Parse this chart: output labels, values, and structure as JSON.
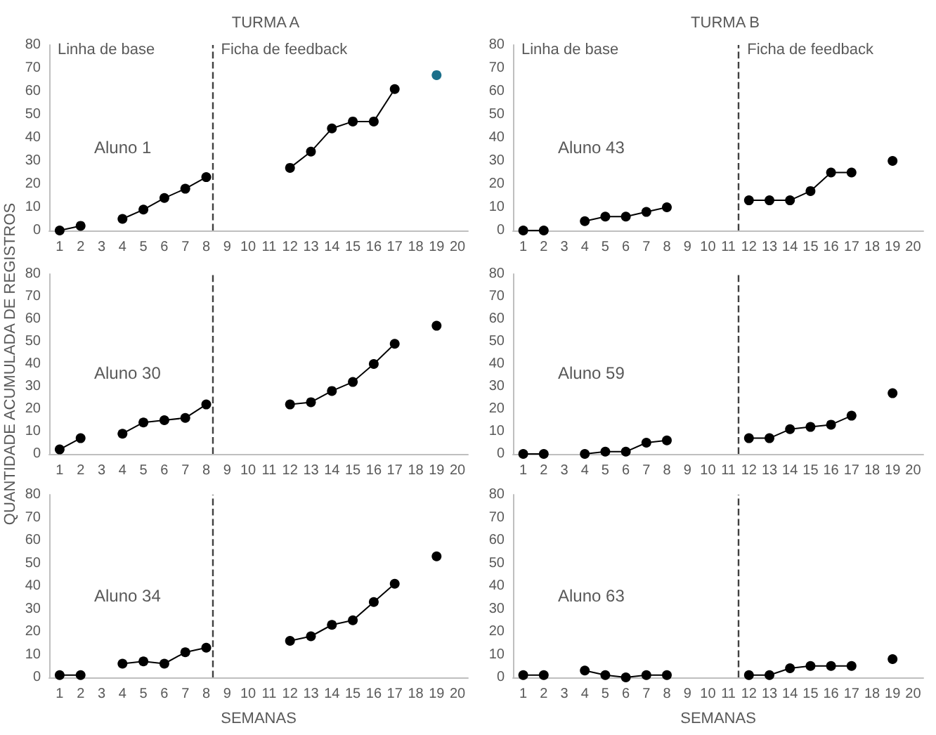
{
  "chart_data": [
    {
      "type": "line",
      "title": "TURMA A",
      "x": [
        1,
        2,
        3,
        4,
        5,
        6,
        7,
        8,
        9,
        10,
        11,
        12,
        13,
        14,
        15,
        16,
        17,
        18,
        19
      ],
      "xlim": [
        0.5,
        20.5
      ],
      "xticks": [
        1,
        2,
        3,
        4,
        5,
        6,
        7,
        8,
        9,
        10,
        11,
        12,
        13,
        14,
        15,
        16,
        17,
        18,
        19,
        20
      ],
      "ylim": [
        0,
        80
      ],
      "yticks": [
        0,
        10,
        20,
        30,
        40,
        50,
        60,
        70,
        80
      ],
      "marker": "circle",
      "line_style": "solid",
      "series": [
        {
          "color": "#000000",
          "colors": [
            "#000000",
            "#000000",
            null,
            "#000000",
            "#000000",
            "#000000",
            "#000000",
            "#000000",
            null,
            null,
            null,
            "#000000",
            "#000000",
            "#000000",
            "#000000",
            "#000000",
            "#000000",
            null,
            "#1b6f8a"
          ],
          "values": [
            0,
            2,
            null,
            5,
            9,
            14,
            18,
            23,
            null,
            null,
            null,
            27,
            34,
            44,
            47,
            47,
            61,
            null,
            67
          ]
        }
      ],
      "ref_lines": [
        {
          "axis": "x",
          "value": 8.3,
          "line_style": "dashed"
        }
      ],
      "annotations": [
        "Linha de base",
        "Ficha de feedback",
        "Aluno 1"
      ]
    },
    {
      "type": "line",
      "title": "TURMA B",
      "x": [
        1,
        2,
        3,
        4,
        5,
        6,
        7,
        8,
        9,
        10,
        11,
        12,
        13,
        14,
        15,
        16,
        17,
        18,
        19
      ],
      "xlim": [
        0.5,
        20.5
      ],
      "xticks": [
        1,
        2,
        3,
        4,
        5,
        6,
        7,
        8,
        9,
        10,
        11,
        12,
        13,
        14,
        15,
        16,
        17,
        18,
        19,
        20
      ],
      "ylim": [
        0,
        80
      ],
      "yticks": [
        0,
        10,
        20,
        30,
        40,
        50,
        60,
        70,
        80
      ],
      "marker": "circle",
      "line_style": "solid",
      "series": [
        {
          "color": "#000000",
          "values": [
            0,
            0,
            null,
            4,
            6,
            6,
            8,
            10,
            null,
            null,
            null,
            13,
            13,
            13,
            17,
            25,
            25,
            null,
            30
          ]
        }
      ],
      "ref_lines": [
        {
          "axis": "x",
          "value": 11.5,
          "line_style": "dashed"
        }
      ],
      "annotations": [
        "Linha de base",
        "Ficha de feedback",
        "Aluno 43"
      ]
    },
    {
      "type": "line",
      "ylabel": "QUANTIDADE ACUMULADA DE REGISTROS",
      "x": [
        1,
        2,
        3,
        4,
        5,
        6,
        7,
        8,
        9,
        10,
        11,
        12,
        13,
        14,
        15,
        16,
        17,
        18,
        19
      ],
      "xlim": [
        0.5,
        20.5
      ],
      "xticks": [
        1,
        2,
        3,
        4,
        5,
        6,
        7,
        8,
        9,
        10,
        11,
        12,
        13,
        14,
        15,
        16,
        17,
        18,
        19,
        20
      ],
      "ylim": [
        0,
        80
      ],
      "yticks": [
        0,
        10,
        20,
        30,
        40,
        50,
        60,
        70,
        80
      ],
      "marker": "circle",
      "line_style": "solid",
      "series": [
        {
          "color": "#000000",
          "values": [
            2,
            7,
            null,
            9,
            14,
            15,
            16,
            22,
            null,
            null,
            null,
            22,
            23,
            28,
            32,
            40,
            49,
            null,
            57
          ]
        }
      ],
      "ref_lines": [
        {
          "axis": "x",
          "value": 8.3,
          "line_style": "dashed"
        }
      ],
      "annotations": [
        "Aluno 30"
      ]
    },
    {
      "type": "line",
      "x": [
        1,
        2,
        3,
        4,
        5,
        6,
        7,
        8,
        9,
        10,
        11,
        12,
        13,
        14,
        15,
        16,
        17,
        18,
        19
      ],
      "xlim": [
        0.5,
        20.5
      ],
      "xticks": [
        1,
        2,
        3,
        4,
        5,
        6,
        7,
        8,
        9,
        10,
        11,
        12,
        13,
        14,
        15,
        16,
        17,
        18,
        19,
        20
      ],
      "ylim": [
        0,
        80
      ],
      "yticks": [
        0,
        10,
        20,
        30,
        40,
        50,
        60,
        70,
        80
      ],
      "marker": "circle",
      "line_style": "solid",
      "series": [
        {
          "color": "#000000",
          "values": [
            0,
            0,
            null,
            0,
            1,
            1,
            5,
            6,
            null,
            null,
            null,
            7,
            7,
            11,
            12,
            13,
            17,
            null,
            27
          ]
        }
      ],
      "ref_lines": [
        {
          "axis": "x",
          "value": 11.5,
          "line_style": "dashed"
        }
      ],
      "annotations": [
        "Aluno 59"
      ]
    },
    {
      "type": "line",
      "xlabel": "SEMANAS",
      "x": [
        1,
        2,
        3,
        4,
        5,
        6,
        7,
        8,
        9,
        10,
        11,
        12,
        13,
        14,
        15,
        16,
        17,
        18,
        19
      ],
      "xlim": [
        0.5,
        20.5
      ],
      "xticks": [
        1,
        2,
        3,
        4,
        5,
        6,
        7,
        8,
        9,
        10,
        11,
        12,
        13,
        14,
        15,
        16,
        17,
        18,
        19,
        20
      ],
      "ylim": [
        0,
        80
      ],
      "yticks": [
        0,
        10,
        20,
        30,
        40,
        50,
        60,
        70,
        80
      ],
      "marker": "circle",
      "line_style": "solid",
      "series": [
        {
          "color": "#000000",
          "values": [
            1,
            1,
            null,
            6,
            7,
            6,
            11,
            13,
            null,
            null,
            null,
            16,
            18,
            23,
            25,
            33,
            41,
            null,
            53
          ]
        }
      ],
      "ref_lines": [
        {
          "axis": "x",
          "value": 8.3,
          "line_style": "dashed"
        }
      ],
      "annotations": [
        "Aluno 34"
      ]
    },
    {
      "type": "line",
      "xlabel": "SEMANAS",
      "x": [
        1,
        2,
        3,
        4,
        5,
        6,
        7,
        8,
        9,
        10,
        11,
        12,
        13,
        14,
        15,
        16,
        17,
        18,
        19
      ],
      "xlim": [
        0.5,
        20.5
      ],
      "xticks": [
        1,
        2,
        3,
        4,
        5,
        6,
        7,
        8,
        9,
        10,
        11,
        12,
        13,
        14,
        15,
        16,
        17,
        18,
        19,
        20
      ],
      "ylim": [
        0,
        80
      ],
      "yticks": [
        0,
        10,
        20,
        30,
        40,
        50,
        60,
        70,
        80
      ],
      "marker": "circle",
      "line_style": "solid",
      "series": [
        {
          "color": "#000000",
          "values": [
            1,
            1,
            null,
            3,
            1,
            0,
            1,
            1,
            null,
            null,
            null,
            1,
            1,
            4,
            5,
            5,
            5,
            null,
            8
          ]
        }
      ],
      "ref_lines": [
        {
          "axis": "x",
          "value": 11.5,
          "line_style": "dashed"
        }
      ],
      "annotations": [
        "Aluno 63"
      ]
    }
  ]
}
